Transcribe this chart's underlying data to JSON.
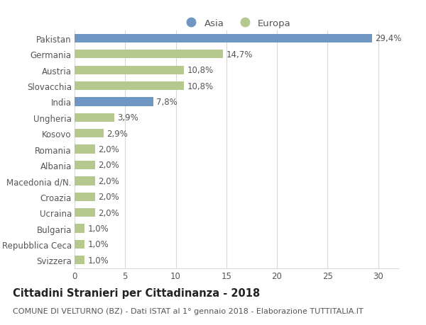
{
  "categories": [
    "Pakistan",
    "Germania",
    "Austria",
    "Slovacchia",
    "India",
    "Ungheria",
    "Kosovo",
    "Romania",
    "Albania",
    "Macedonia d/N.",
    "Croazia",
    "Ucraina",
    "Bulgaria",
    "Repubblica Ceca",
    "Svizzera"
  ],
  "values": [
    29.4,
    14.7,
    10.8,
    10.8,
    7.8,
    3.9,
    2.9,
    2.0,
    2.0,
    2.0,
    2.0,
    2.0,
    1.0,
    1.0,
    1.0
  ],
  "labels": [
    "29,4%",
    "14,7%",
    "10,8%",
    "10,8%",
    "7,8%",
    "3,9%",
    "2,9%",
    "2,0%",
    "2,0%",
    "2,0%",
    "2,0%",
    "2,0%",
    "1,0%",
    "1,0%",
    "1,0%"
  ],
  "continents": [
    "Asia",
    "Europa",
    "Europa",
    "Europa",
    "Asia",
    "Europa",
    "Europa",
    "Europa",
    "Europa",
    "Europa",
    "Europa",
    "Europa",
    "Europa",
    "Europa",
    "Europa"
  ],
  "color_asia": "#7096c4",
  "color_europa": "#b5c98e",
  "background_color": "#ffffff",
  "grid_color": "#d8d8d8",
  "title": "Cittadini Stranieri per Cittadinanza - 2018",
  "subtitle": "COMUNE DI VELTURNO (BZ) - Dati ISTAT al 1° gennaio 2018 - Elaborazione TUTTITALIA.IT",
  "xlim": [
    0,
    32
  ],
  "xticks": [
    0,
    5,
    10,
    15,
    20,
    25,
    30
  ],
  "legend_labels": [
    "Asia",
    "Europa"
  ],
  "title_fontsize": 10.5,
  "subtitle_fontsize": 8,
  "tick_fontsize": 8.5,
  "label_fontsize": 8.5,
  "bar_height": 0.55
}
